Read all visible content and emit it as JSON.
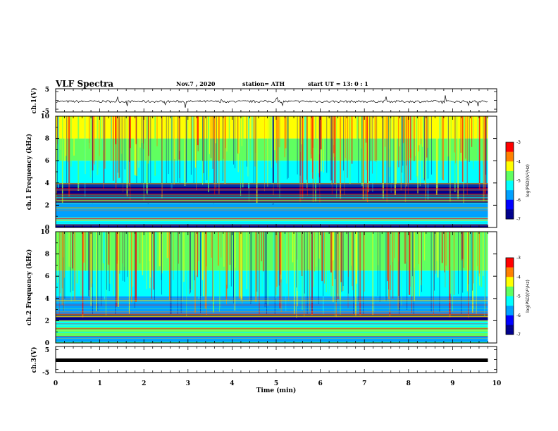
{
  "header": {
    "title": "VLF Spectra",
    "date": "Nov.7 , 2020",
    "station": "station= ATH",
    "start": "start UT = 13: 0 : 1"
  },
  "colors": {
    "axis": "#000000",
    "signal": "#000000",
    "colormap": [
      "#00008c",
      "#0000ff",
      "#00a0ff",
      "#00ffff",
      "#60ff60",
      "#ffff00",
      "#ff8000",
      "#ff0000",
      "#c00000",
      "#ffffff"
    ]
  },
  "chart_data": [
    {
      "type": "line",
      "name": "ch1-waveform",
      "ylabel": "ch.1(V)",
      "ylim": [
        -5,
        5
      ],
      "yticks": [
        "5",
        "-5"
      ],
      "xlim": [
        0,
        10
      ],
      "baseline": -0.5,
      "amplitude": 1.0
    },
    {
      "type": "heatmap",
      "name": "ch1-spectrogram",
      "ylabel": "ch.1 Frequency (kHz)",
      "ylim": [
        0,
        10
      ],
      "yticks": [
        "0",
        "2",
        "4",
        "6",
        "8",
        "10"
      ],
      "xlim": [
        0,
        9.8
      ],
      "colorbar": {
        "label": "log(PSD)(V²/Hz)",
        "range": [
          -7,
          -3
        ],
        "ticks": [
          "-3",
          "-4",
          "-5",
          "-6",
          "-7"
        ]
      },
      "bands_khz": [
        {
          "from": 0,
          "to": 0.3,
          "level": -6.8
        },
        {
          "from": 0.3,
          "to": 0.9,
          "level": -5.2
        },
        {
          "from": 0.9,
          "to": 2.2,
          "level": -5.9
        },
        {
          "from": 2.2,
          "to": 4.0,
          "level": -6.6
        },
        {
          "from": 4.0,
          "to": 6.0,
          "level": -5.3
        },
        {
          "from": 6.0,
          "to": 8.0,
          "level": -4.9
        },
        {
          "from": 8.0,
          "to": 10.0,
          "level": -4.5
        }
      ]
    },
    {
      "type": "heatmap",
      "name": "ch2-spectrogram",
      "ylabel": "ch.2 Frequency (kHz)",
      "ylim": [
        0,
        10
      ],
      "yticks": [
        "0",
        "2",
        "4",
        "6",
        "8",
        "10"
      ],
      "xlim": [
        0,
        9.8
      ],
      "colorbar": {
        "label": "log(PSD)(V²/Hz)",
        "range": [
          -7,
          -3
        ],
        "ticks": [
          "-3",
          "-4",
          "-5",
          "-6",
          "-7"
        ]
      },
      "bands_khz": [
        {
          "from": 0,
          "to": 0.6,
          "level": -5.8
        },
        {
          "from": 0.6,
          "to": 1.4,
          "level": -4.7
        },
        {
          "from": 1.4,
          "to": 2.0,
          "level": -5.4
        },
        {
          "from": 2.0,
          "to": 2.6,
          "level": -6.7
        },
        {
          "from": 2.6,
          "to": 4.2,
          "level": -6.0
        },
        {
          "from": 4.2,
          "to": 6.5,
          "level": -5.5
        },
        {
          "from": 6.5,
          "to": 10.0,
          "level": -4.9
        }
      ]
    },
    {
      "type": "line",
      "name": "ch3-waveform",
      "ylabel": "ch.3(V)",
      "ylim": [
        -5,
        5
      ],
      "yticks": [
        "5",
        "-5"
      ],
      "xlim": [
        0,
        10
      ],
      "baseline": -1.2,
      "amplitude": 0.2
    }
  ],
  "xaxis": {
    "label": "Time (min)",
    "ticks": [
      "0",
      "1",
      "2",
      "3",
      "4",
      "5",
      "6",
      "7",
      "8",
      "9",
      "10"
    ],
    "min": 0,
    "max": 10
  }
}
